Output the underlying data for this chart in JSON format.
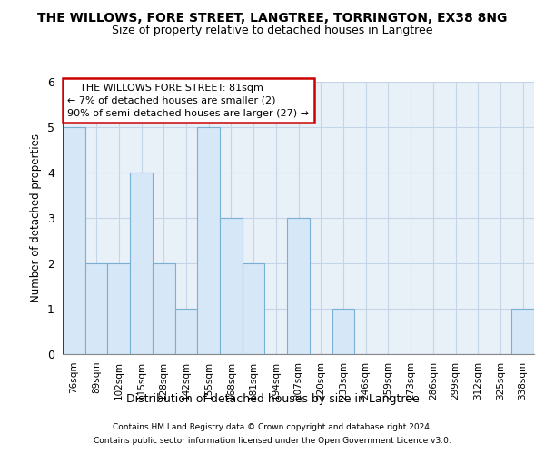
{
  "title": "THE WILLOWS, FORE STREET, LANGTREE, TORRINGTON, EX38 8NG",
  "subtitle": "Size of property relative to detached houses in Langtree",
  "xlabel": "Distribution of detached houses by size in Langtree",
  "ylabel": "Number of detached properties",
  "categories": [
    "76sqm",
    "89sqm",
    "102sqm",
    "115sqm",
    "128sqm",
    "142sqm",
    "155sqm",
    "168sqm",
    "181sqm",
    "194sqm",
    "207sqm",
    "220sqm",
    "233sqm",
    "246sqm",
    "259sqm",
    "273sqm",
    "286sqm",
    "299sqm",
    "312sqm",
    "325sqm",
    "338sqm"
  ],
  "values": [
    5,
    2,
    2,
    4,
    2,
    1,
    5,
    3,
    2,
    0,
    3,
    0,
    1,
    0,
    0,
    0,
    0,
    0,
    0,
    0,
    1
  ],
  "bar_color": "#d6e8f7",
  "bar_edge_color": "#7ab0d4",
  "plot_bg_color": "#e8f0f8",
  "grid_color": "#c5d5e8",
  "annotation_lines": [
    "    THE WILLOWS FORE STREET: 81sqm    ",
    "← 7% of detached houses are smaller (2)",
    "90% of semi-detached houses are larger (27) →"
  ],
  "ann_box_edge_color": "#cc0000",
  "property_line_color": "#cc0000",
  "ylim_max": 6,
  "yticks": [
    0,
    1,
    2,
    3,
    4,
    5,
    6
  ],
  "footnote1": "Contains HM Land Registry data © Crown copyright and database right 2024.",
  "footnote2": "Contains public sector information licensed under the Open Government Licence v3.0."
}
